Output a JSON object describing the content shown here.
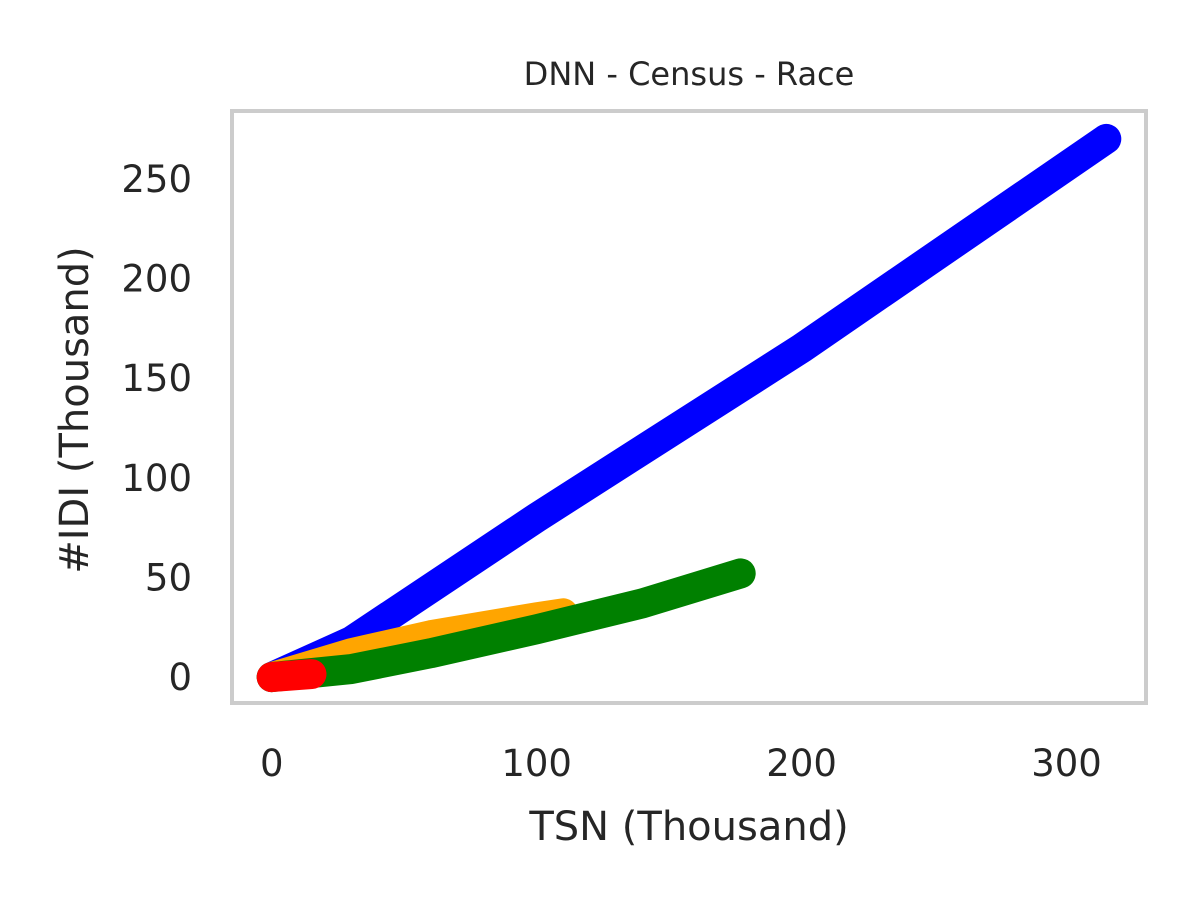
{
  "chart_data": {
    "type": "line",
    "title": "DNN - Census - Race",
    "xlabel": "TSN (Thousand)",
    "ylabel": "#IDI (Thousand)",
    "xlim": [
      -15,
      330
    ],
    "ylim": [
      -13,
      284
    ],
    "xticks": [
      0,
      100,
      200,
      300
    ],
    "yticks": [
      0,
      50,
      100,
      150,
      200,
      250
    ],
    "grid": false,
    "series": [
      {
        "color": "#0000ff",
        "x": [
          0,
          30,
          100,
          200,
          315
        ],
        "y": [
          0,
          18,
          80,
          165,
          270
        ]
      },
      {
        "color": "#ffa500",
        "x": [
          0,
          30,
          60,
          100,
          110
        ],
        "y": [
          0,
          12,
          21,
          30,
          32
        ]
      },
      {
        "color": "#008000",
        "x": [
          0,
          30,
          60,
          100,
          140,
          177
        ],
        "y": [
          0,
          4,
          12,
          24,
          37,
          52
        ]
      },
      {
        "color": "#ff0000",
        "x": [
          0,
          5,
          10,
          15
        ],
        "y": [
          0,
          0.5,
          1,
          1.5
        ]
      }
    ]
  }
}
